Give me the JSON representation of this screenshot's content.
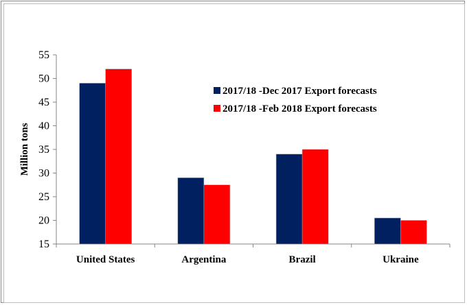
{
  "chart_data": {
    "type": "bar",
    "title": "",
    "xlabel": "",
    "ylabel": "Million tons",
    "ylim": [
      15,
      55
    ],
    "yticks": [
      15,
      20,
      25,
      30,
      35,
      40,
      45,
      50,
      55
    ],
    "grid": false,
    "legend_position": "top-right",
    "categories": [
      "United States",
      "Argentina",
      "Brazil",
      "Ukraine"
    ],
    "series": [
      {
        "name": "2017/18 -Dec 2017 Export forecasts",
        "color": "#002060",
        "values": [
          49,
          29,
          34,
          20.5
        ]
      },
      {
        "name": "2017/18 -Feb 2018 Export forecasts",
        "color": "#ff0000",
        "values": [
          52,
          27.5,
          35,
          20
        ]
      }
    ]
  }
}
